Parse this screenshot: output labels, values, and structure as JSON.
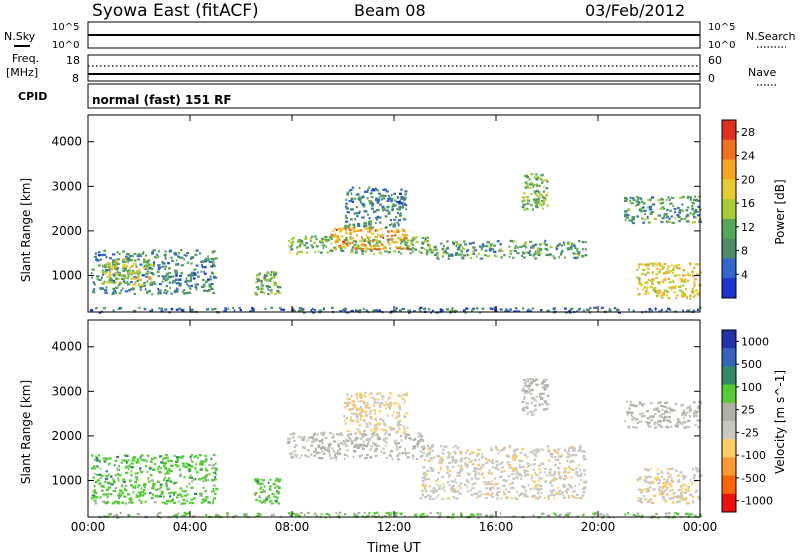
{
  "header": {
    "station": "Syowa East (fitACF)",
    "beam": "Beam 08",
    "date": "03/Feb/2012"
  },
  "strip_panels": {
    "nsky": {
      "label": "N.Sky",
      "ticks_left": [
        "10^5",
        "10^0"
      ],
      "right_label": "N.Search",
      "ticks_right": [
        "10^5",
        "10^0"
      ]
    },
    "freq": {
      "label": "Freq.",
      "unit": "[MHz]",
      "ticks_left": [
        "18",
        "8"
      ],
      "right_label": "Nave",
      "ticks_right": [
        "60",
        "0"
      ]
    },
    "cpid": {
      "label": "CPID",
      "mode_text": "normal (fast) 151 RF"
    }
  },
  "colors": {
    "power_scale": [
      "#1a33cc",
      "#3366cc",
      "#4d8c66",
      "#55a855",
      "#aacc33",
      "#e6cc33",
      "#f5a623",
      "#f07020",
      "#e03020"
    ],
    "velocity_scale": [
      "#ee1111",
      "#ff6600",
      "#ff9933",
      "#ffcc66",
      "#c8c8c0",
      "#b0b0a8",
      "#55cc33",
      "#338866",
      "#3366bb",
      "#2233aa"
    ]
  },
  "chart_data": [
    {
      "type": "heatmap",
      "title": "",
      "xlabel": "",
      "ylabel": "Slant Range [km]",
      "x_ticks": [
        "00:00",
        "04:00",
        "08:00",
        "12:00",
        "16:00",
        "20:00",
        "00:00"
      ],
      "y_ticks": [
        "1000",
        "2000",
        "3000",
        "4000"
      ],
      "xlim": [
        0,
        24
      ],
      "ylim": [
        180,
        4600
      ],
      "colorbar": {
        "label": "Power [dB]",
        "ticks": [
          "4",
          "8",
          "12",
          "16",
          "20",
          "24",
          "28"
        ],
        "range": [
          0,
          30
        ]
      },
      "clusters": [
        {
          "t0": 0.1,
          "t1": 5.0,
          "r0": 600,
          "r1": 1600,
          "v": 8
        },
        {
          "t0": 0.5,
          "t1": 2.5,
          "r0": 800,
          "r1": 1400,
          "v": 16
        },
        {
          "t0": 6.5,
          "t1": 7.5,
          "r0": 600,
          "r1": 1100,
          "v": 12
        },
        {
          "t0": 7.8,
          "t1": 13.5,
          "r0": 1500,
          "r1": 1900,
          "v": 12
        },
        {
          "t0": 9.5,
          "t1": 12.5,
          "r0": 1600,
          "r1": 2100,
          "v": 22
        },
        {
          "t0": 13.5,
          "t1": 19.5,
          "r0": 1400,
          "r1": 1800,
          "v": 10
        },
        {
          "t0": 10.0,
          "t1": 12.5,
          "r0": 2100,
          "r1": 3000,
          "v": 8
        },
        {
          "t0": 17.0,
          "t1": 18.0,
          "r0": 2500,
          "r1": 3300,
          "v": 12
        },
        {
          "t0": 21.0,
          "t1": 24.0,
          "r0": 2200,
          "r1": 2800,
          "v": 10
        },
        {
          "t0": 21.5,
          "t1": 24.0,
          "r0": 500,
          "r1": 1300,
          "v": 18
        },
        {
          "t0": 0.0,
          "t1": 24.0,
          "r0": 190,
          "r1": 300,
          "v": 6
        }
      ]
    },
    {
      "type": "heatmap",
      "title": "",
      "xlabel": "Time UT",
      "ylabel": "Slant Range [km]",
      "x_ticks": [
        "00:00",
        "04:00",
        "08:00",
        "12:00",
        "16:00",
        "20:00",
        "00:00"
      ],
      "y_ticks": [
        "1000",
        "2000",
        "3000",
        "4000"
      ],
      "xlim": [
        0,
        24
      ],
      "ylim": [
        180,
        4600
      ],
      "colorbar": {
        "label": "Velocity [m s^-1]",
        "ticks": [
          "1000",
          "500",
          "100",
          "25",
          "-25",
          "-100",
          "-500",
          "-1000"
        ],
        "range": [
          -1000,
          1000
        ]
      },
      "clusters": [
        {
          "t0": 0.1,
          "t1": 5.0,
          "r0": 500,
          "r1": 1600,
          "v": -300
        },
        {
          "t0": 6.5,
          "t1": 7.5,
          "r0": 500,
          "r1": 1100,
          "v": -300
        },
        {
          "t0": 7.8,
          "t1": 13.5,
          "r0": 1500,
          "r1": 2100,
          "v": 0
        },
        {
          "t0": 10.0,
          "t1": 12.5,
          "r0": 2100,
          "r1": 3000,
          "v": 200
        },
        {
          "t0": 13.0,
          "t1": 19.5,
          "r0": 600,
          "r1": 1800,
          "v": 120
        },
        {
          "t0": 17.0,
          "t1": 18.0,
          "r0": 2500,
          "r1": 3300,
          "v": 0
        },
        {
          "t0": 21.0,
          "t1": 24.0,
          "r0": 2200,
          "r1": 2800,
          "v": 0
        },
        {
          "t0": 21.5,
          "t1": 24.0,
          "r0": 500,
          "r1": 1300,
          "v": 150
        },
        {
          "t0": 0.0,
          "t1": 24.0,
          "r0": 190,
          "r1": 300,
          "v": -200
        }
      ]
    }
  ]
}
